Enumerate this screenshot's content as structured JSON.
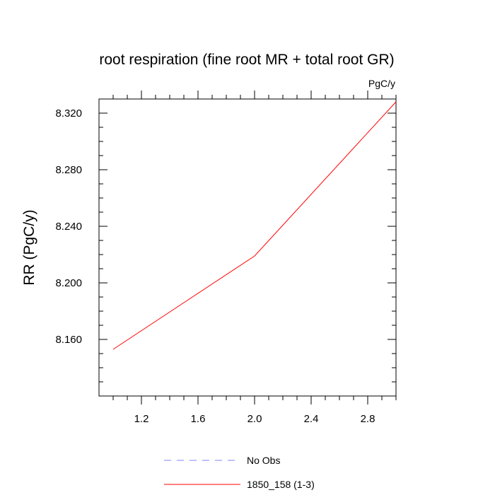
{
  "chart_data": {
    "type": "line",
    "title": "root respiration (fine root MR + total root GR)",
    "units": "PgC/y",
    "xlabel": "",
    "ylabel": "RR  (PgC/y)",
    "xlim": [
      0.9,
      3.0
    ],
    "ylim": [
      8.12,
      8.33
    ],
    "x_ticks": [
      1.2,
      1.6,
      2.0,
      2.4,
      2.8
    ],
    "x_tick_labels": [
      "1.2",
      "1.6",
      "2.0",
      "2.4",
      "2.8"
    ],
    "y_ticks": [
      8.16,
      8.2,
      8.24,
      8.28,
      8.32
    ],
    "y_tick_labels": [
      "8.160",
      "8.200",
      "8.240",
      "8.280",
      "8.320"
    ],
    "series": [
      {
        "name": "1850_158 (1-3)",
        "color": "#ff0000",
        "dash": "solid",
        "x": [
          1,
          2,
          3
        ],
        "values": [
          8.153,
          8.219,
          8.328
        ]
      }
    ],
    "legend": [
      {
        "label": "No Obs",
        "color": "#8080ff",
        "dash": "dashed"
      },
      {
        "label": "1850_158 (1-3)",
        "color": "#ff0000",
        "dash": "solid"
      }
    ],
    "grid": false,
    "legend_position": "bottom"
  }
}
